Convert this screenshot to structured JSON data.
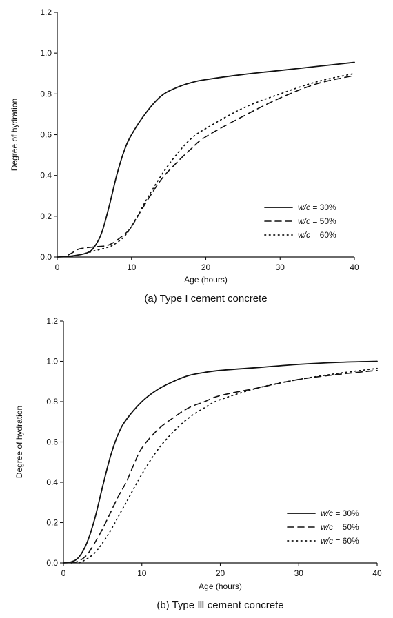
{
  "chart_data": [
    {
      "type": "line",
      "caption": "(a) Type I cement concrete",
      "xlabel": "Age (hours)",
      "ylabel": "Degree of hydration",
      "xlim": [
        0,
        40
      ],
      "ylim": [
        0,
        1.2
      ],
      "x_ticks": [
        0,
        10,
        20,
        30,
        40
      ],
      "y_ticks": [
        "0.0",
        "0.2",
        "0.4",
        "0.6",
        "0.8",
        "1.0",
        "1.2"
      ],
      "grid": false,
      "legend_position": "bottom-right",
      "series": [
        {
          "name": "w/c = 30%",
          "style": "solid",
          "points": [
            [
              0,
              0
            ],
            [
              2,
              0.005
            ],
            [
              4,
              0.02
            ],
            [
              5,
              0.05
            ],
            [
              6,
              0.12
            ],
            [
              7,
              0.25
            ],
            [
              8,
              0.4
            ],
            [
              9,
              0.52
            ],
            [
              10,
              0.6
            ],
            [
              12,
              0.71
            ],
            [
              14,
              0.79
            ],
            [
              16,
              0.83
            ],
            [
              18,
              0.855
            ],
            [
              20,
              0.87
            ],
            [
              25,
              0.895
            ],
            [
              30,
              0.915
            ],
            [
              35,
              0.935
            ],
            [
              40,
              0.955
            ]
          ]
        },
        {
          "name": "w/c = 50%",
          "style": "dashed",
          "points": [
            [
              1.5,
              0.01
            ],
            [
              2,
              0.02
            ],
            [
              3,
              0.04
            ],
            [
              5,
              0.05
            ],
            [
              7,
              0.06
            ],
            [
              9,
              0.11
            ],
            [
              10,
              0.15
            ],
            [
              12,
              0.27
            ],
            [
              14,
              0.38
            ],
            [
              16,
              0.46
            ],
            [
              18,
              0.53
            ],
            [
              20,
              0.59
            ],
            [
              25,
              0.69
            ],
            [
              30,
              0.78
            ],
            [
              35,
              0.85
            ],
            [
              40,
              0.89
            ]
          ]
        },
        {
          "name": "w/c = 60%",
          "style": "dotted",
          "points": [
            [
              2,
              0.005
            ],
            [
              3,
              0.01
            ],
            [
              5,
              0.03
            ],
            [
              7,
              0.05
            ],
            [
              8,
              0.07
            ],
            [
              9,
              0.1
            ],
            [
              10,
              0.15
            ],
            [
              12,
              0.28
            ],
            [
              14,
              0.4
            ],
            [
              16,
              0.5
            ],
            [
              18,
              0.58
            ],
            [
              20,
              0.63
            ],
            [
              25,
              0.73
            ],
            [
              30,
              0.8
            ],
            [
              35,
              0.86
            ],
            [
              40,
              0.9
            ]
          ]
        }
      ]
    },
    {
      "type": "line",
      "caption": "(b) Type Ⅲ  cement concrete",
      "xlabel": "Age (hours)",
      "ylabel": "Degree of hydration",
      "xlim": [
        0,
        40
      ],
      "ylim": [
        0,
        1.2
      ],
      "x_ticks": [
        0,
        10,
        20,
        30,
        40
      ],
      "y_ticks": [
        "0.0",
        "0.2",
        "0.4",
        "0.6",
        "0.8",
        "1.0",
        "1.2"
      ],
      "grid": false,
      "legend_position": "bottom-right",
      "series": [
        {
          "name": "w/c = 30%",
          "style": "solid",
          "points": [
            [
              0,
              0
            ],
            [
              1,
              0.005
            ],
            [
              2,
              0.03
            ],
            [
              3,
              0.1
            ],
            [
              4,
              0.22
            ],
            [
              5,
              0.38
            ],
            [
              6,
              0.53
            ],
            [
              7,
              0.64
            ],
            [
              8,
              0.71
            ],
            [
              10,
              0.8
            ],
            [
              12,
              0.86
            ],
            [
              14,
              0.9
            ],
            [
              16,
              0.93
            ],
            [
              18,
              0.945
            ],
            [
              20,
              0.955
            ],
            [
              25,
              0.97
            ],
            [
              30,
              0.985
            ],
            [
              35,
              0.995
            ],
            [
              40,
              1.0
            ]
          ]
        },
        {
          "name": "w/c = 50%",
          "style": "dashed",
          "points": [
            [
              1,
              0
            ],
            [
              2,
              0.01
            ],
            [
              3,
              0.04
            ],
            [
              4,
              0.1
            ],
            [
              5,
              0.17
            ],
            [
              6,
              0.25
            ],
            [
              7,
              0.33
            ],
            [
              8,
              0.4
            ],
            [
              9,
              0.49
            ],
            [
              10,
              0.57
            ],
            [
              12,
              0.66
            ],
            [
              14,
              0.72
            ],
            [
              16,
              0.77
            ],
            [
              18,
              0.8
            ],
            [
              20,
              0.83
            ],
            [
              25,
              0.87
            ],
            [
              30,
              0.91
            ],
            [
              35,
              0.935
            ],
            [
              40,
              0.955
            ]
          ]
        },
        {
          "name": "w/c = 60%",
          "style": "dotted",
          "points": [
            [
              2,
              0
            ],
            [
              3,
              0.02
            ],
            [
              4,
              0.05
            ],
            [
              5,
              0.1
            ],
            [
              6,
              0.16
            ],
            [
              7,
              0.23
            ],
            [
              8,
              0.3
            ],
            [
              10,
              0.44
            ],
            [
              12,
              0.56
            ],
            [
              14,
              0.65
            ],
            [
              16,
              0.72
            ],
            [
              18,
              0.77
            ],
            [
              20,
              0.81
            ],
            [
              25,
              0.87
            ],
            [
              30,
              0.91
            ],
            [
              35,
              0.94
            ],
            [
              40,
              0.965
            ]
          ]
        }
      ]
    }
  ]
}
